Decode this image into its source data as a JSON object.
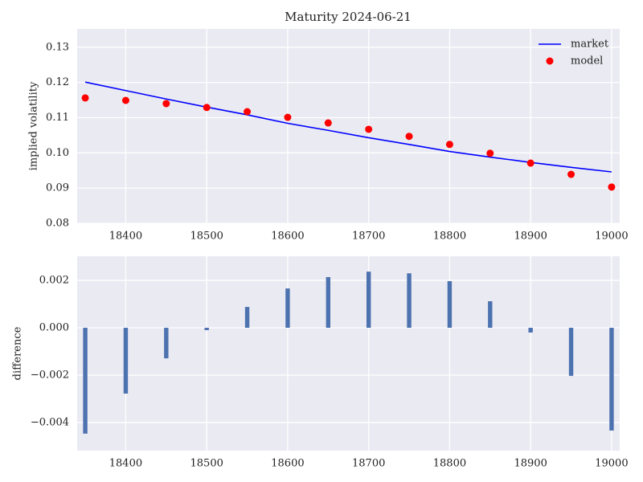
{
  "chart_data": [
    {
      "type": "line",
      "title": "Maturity 2024-06-21",
      "ylabel": "implied volatility",
      "x": [
        18350,
        18400,
        18450,
        18500,
        18550,
        18600,
        18650,
        18700,
        18750,
        18800,
        18850,
        18900,
        18950,
        19000
      ],
      "series": [
        {
          "name": "market",
          "type": "line",
          "color": "#0000ff",
          "values": [
            0.1201,
            0.1177,
            0.1153,
            0.113,
            0.1108,
            0.1084,
            0.1064,
            0.1043,
            0.1024,
            0.1004,
            0.0988,
            0.0973,
            0.0959,
            0.0946
          ]
        },
        {
          "name": "model",
          "type": "scatter",
          "color": "#ff0000",
          "values": [
            0.1156,
            0.1149,
            0.114,
            0.1129,
            0.1117,
            0.1101,
            0.1085,
            0.1067,
            0.1047,
            0.1024,
            0.0999,
            0.0971,
            0.0939,
            0.0903
          ]
        }
      ],
      "xlim": [
        18340,
        19010
      ],
      "ylim": [
        0.08,
        0.1352
      ],
      "xticks": [
        18400,
        18500,
        18600,
        18700,
        18800,
        18900,
        19000
      ],
      "yticks": [
        0.08,
        0.09,
        {
          "value": 0.1,
          "label": "0.10"
        },
        0.11,
        0.12,
        0.13
      ],
      "grid": true,
      "legend": "upper right"
    },
    {
      "type": "bar",
      "ylabel": "difference",
      "color": "#4c72b0",
      "x": [
        18350,
        18400,
        18450,
        18500,
        18550,
        18600,
        18650,
        18700,
        18750,
        18800,
        18850,
        18900,
        18950,
        19000
      ],
      "values": [
        -0.00447,
        -0.00278,
        -0.00129,
        -0.0001,
        0.00088,
        0.00166,
        0.00214,
        0.00237,
        0.0023,
        0.00197,
        0.00112,
        -0.0002,
        -0.00203,
        -0.00434
      ],
      "xlim": [
        18340,
        19010
      ],
      "ylim": [
        -0.00519,
        0.00302
      ],
      "xticks": [
        18400,
        18500,
        18600,
        18700,
        18800,
        18900,
        19000
      ],
      "yticks": [
        {
          "value": -0.004,
          "label": "−0.004"
        },
        {
          "value": -0.002,
          "label": "−0.002"
        },
        {
          "value": 0,
          "label": "0.000"
        },
        {
          "value": 0.002,
          "label": "0.002"
        }
      ],
      "grid": true
    }
  ]
}
